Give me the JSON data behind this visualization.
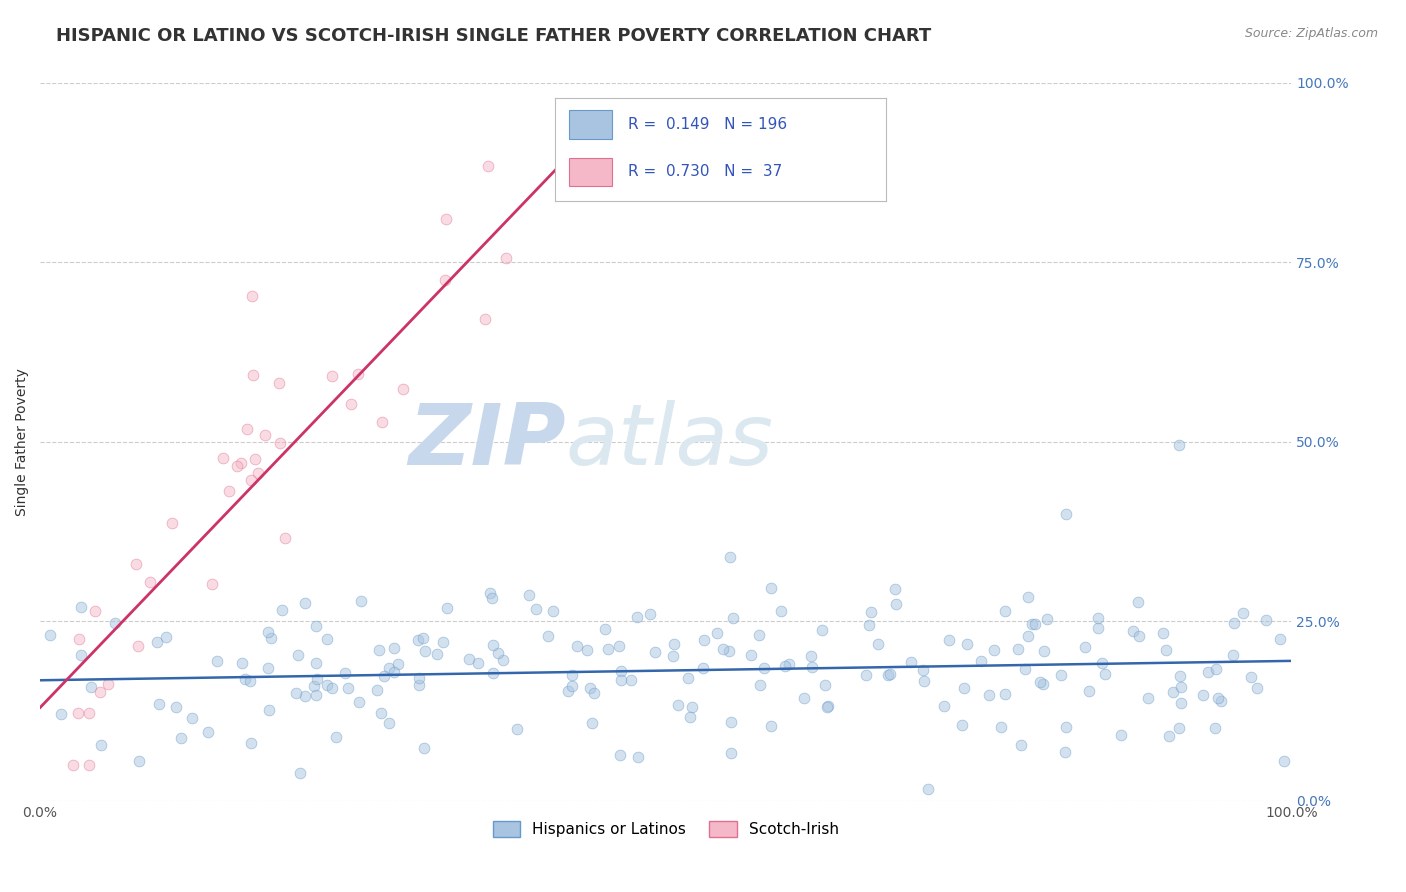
{
  "title": "HISPANIC OR LATINO VS SCOTCH-IRISH SINGLE FATHER POVERTY CORRELATION CHART",
  "source_text": "Source: ZipAtlas.com",
  "ylabel": "Single Father Poverty",
  "xlim": [
    0,
    1
  ],
  "ylim": [
    0,
    1
  ],
  "ytick_labels": [
    "0.0%",
    "25.0%",
    "50.0%",
    "75.0%",
    "100.0%"
  ],
  "ytick_positions": [
    0.0,
    0.25,
    0.5,
    0.75,
    1.0
  ],
  "series1_color": "#a8c4e0",
  "series1_edgecolor": "#6699cc",
  "series2_color": "#f4b8c8",
  "series2_edgecolor": "#e07090",
  "trendline1_color": "#3366aa",
  "trendline2_color": "#cc3366",
  "legend_R1": "0.149",
  "legend_N1": "196",
  "legend_R2": "0.730",
  "legend_N2": "37",
  "legend_label1": "Hispanics or Latinos",
  "legend_label2": "Scotch-Irish",
  "watermark_zip": "ZIP",
  "watermark_atlas": "atlas",
  "watermark_color": "#c8d8ec",
  "background_color": "#ffffff",
  "grid_color": "#cccccc",
  "title_color": "#333333",
  "title_fontsize": 13,
  "axis_label_fontsize": 10,
  "tick_label_fontsize": 10,
  "marker_size": 60,
  "marker_alpha": 0.5,
  "trendline1_x": [
    0.0,
    1.0
  ],
  "trendline1_y": [
    0.168,
    0.195
  ],
  "trendline2_x": [
    0.0,
    0.44
  ],
  "trendline2_y": [
    0.13,
    0.93
  ]
}
